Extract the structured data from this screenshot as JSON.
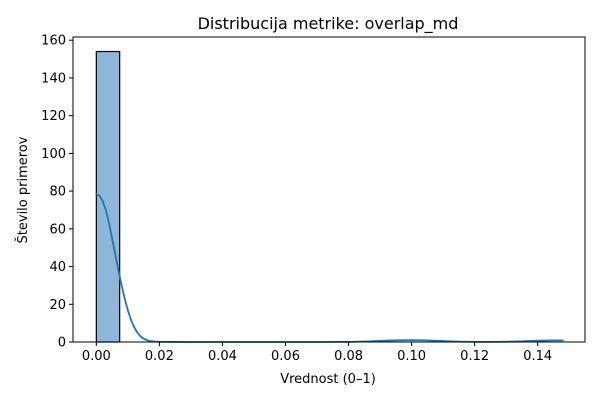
{
  "chart_data": {
    "type": "bar",
    "title": "Distribucija metrike: overlap_md",
    "xlabel": "Vrednost (0–1)",
    "ylabel": "Število primerov",
    "xlim": [
      -0.0074,
      0.155
    ],
    "ylim": [
      0,
      161.7
    ],
    "xticks": [
      0.0,
      0.02,
      0.04,
      0.06,
      0.08,
      0.1,
      0.12,
      0.14
    ],
    "xtick_labels": [
      "0.00",
      "0.02",
      "0.04",
      "0.06",
      "0.08",
      "0.10",
      "0.12",
      "0.14"
    ],
    "yticks": [
      0,
      20,
      40,
      60,
      80,
      100,
      120,
      140,
      160
    ],
    "ytick_labels": [
      "0",
      "20",
      "40",
      "60",
      "80",
      "100",
      "120",
      "140",
      "160"
    ],
    "bins": [
      {
        "x0": 0.0,
        "x1": 0.0074,
        "count": 154
      }
    ],
    "kde": {
      "x": [
        0.0,
        0.001,
        0.002,
        0.003,
        0.004,
        0.005,
        0.006,
        0.007,
        0.008,
        0.009,
        0.01,
        0.011,
        0.012,
        0.013,
        0.014,
        0.015,
        0.016,
        0.017,
        0.018,
        0.019,
        0.02,
        0.022,
        0.024,
        0.026,
        0.03,
        0.035,
        0.04,
        0.05,
        0.06,
        0.07,
        0.08,
        0.085,
        0.09,
        0.095,
        0.1,
        0.105,
        0.11,
        0.115,
        0.12,
        0.125,
        0.13,
        0.135,
        0.14,
        0.145,
        0.148
      ],
      "y": [
        78.5,
        77.6,
        74.8,
        70.0,
        63.2,
        55.0,
        46.5,
        38.0,
        30.2,
        23.0,
        16.8,
        11.8,
        7.9,
        5.0,
        3.0,
        1.8,
        1.0,
        0.55,
        0.3,
        0.18,
        0.1,
        0.05,
        0.03,
        0.02,
        0.01,
        0.0,
        0.0,
        0.0,
        0.0,
        0.0,
        0.05,
        0.25,
        0.6,
        0.9,
        1.0,
        0.85,
        0.5,
        0.2,
        0.05,
        0.05,
        0.15,
        0.4,
        0.7,
        0.85,
        0.85
      ]
    },
    "colors": {
      "bar_fill": "#8db6d9",
      "bar_edge": "#000000",
      "kde_line": "#1f77b4",
      "axes": "#000000"
    },
    "grid": false,
    "legend": "none"
  }
}
